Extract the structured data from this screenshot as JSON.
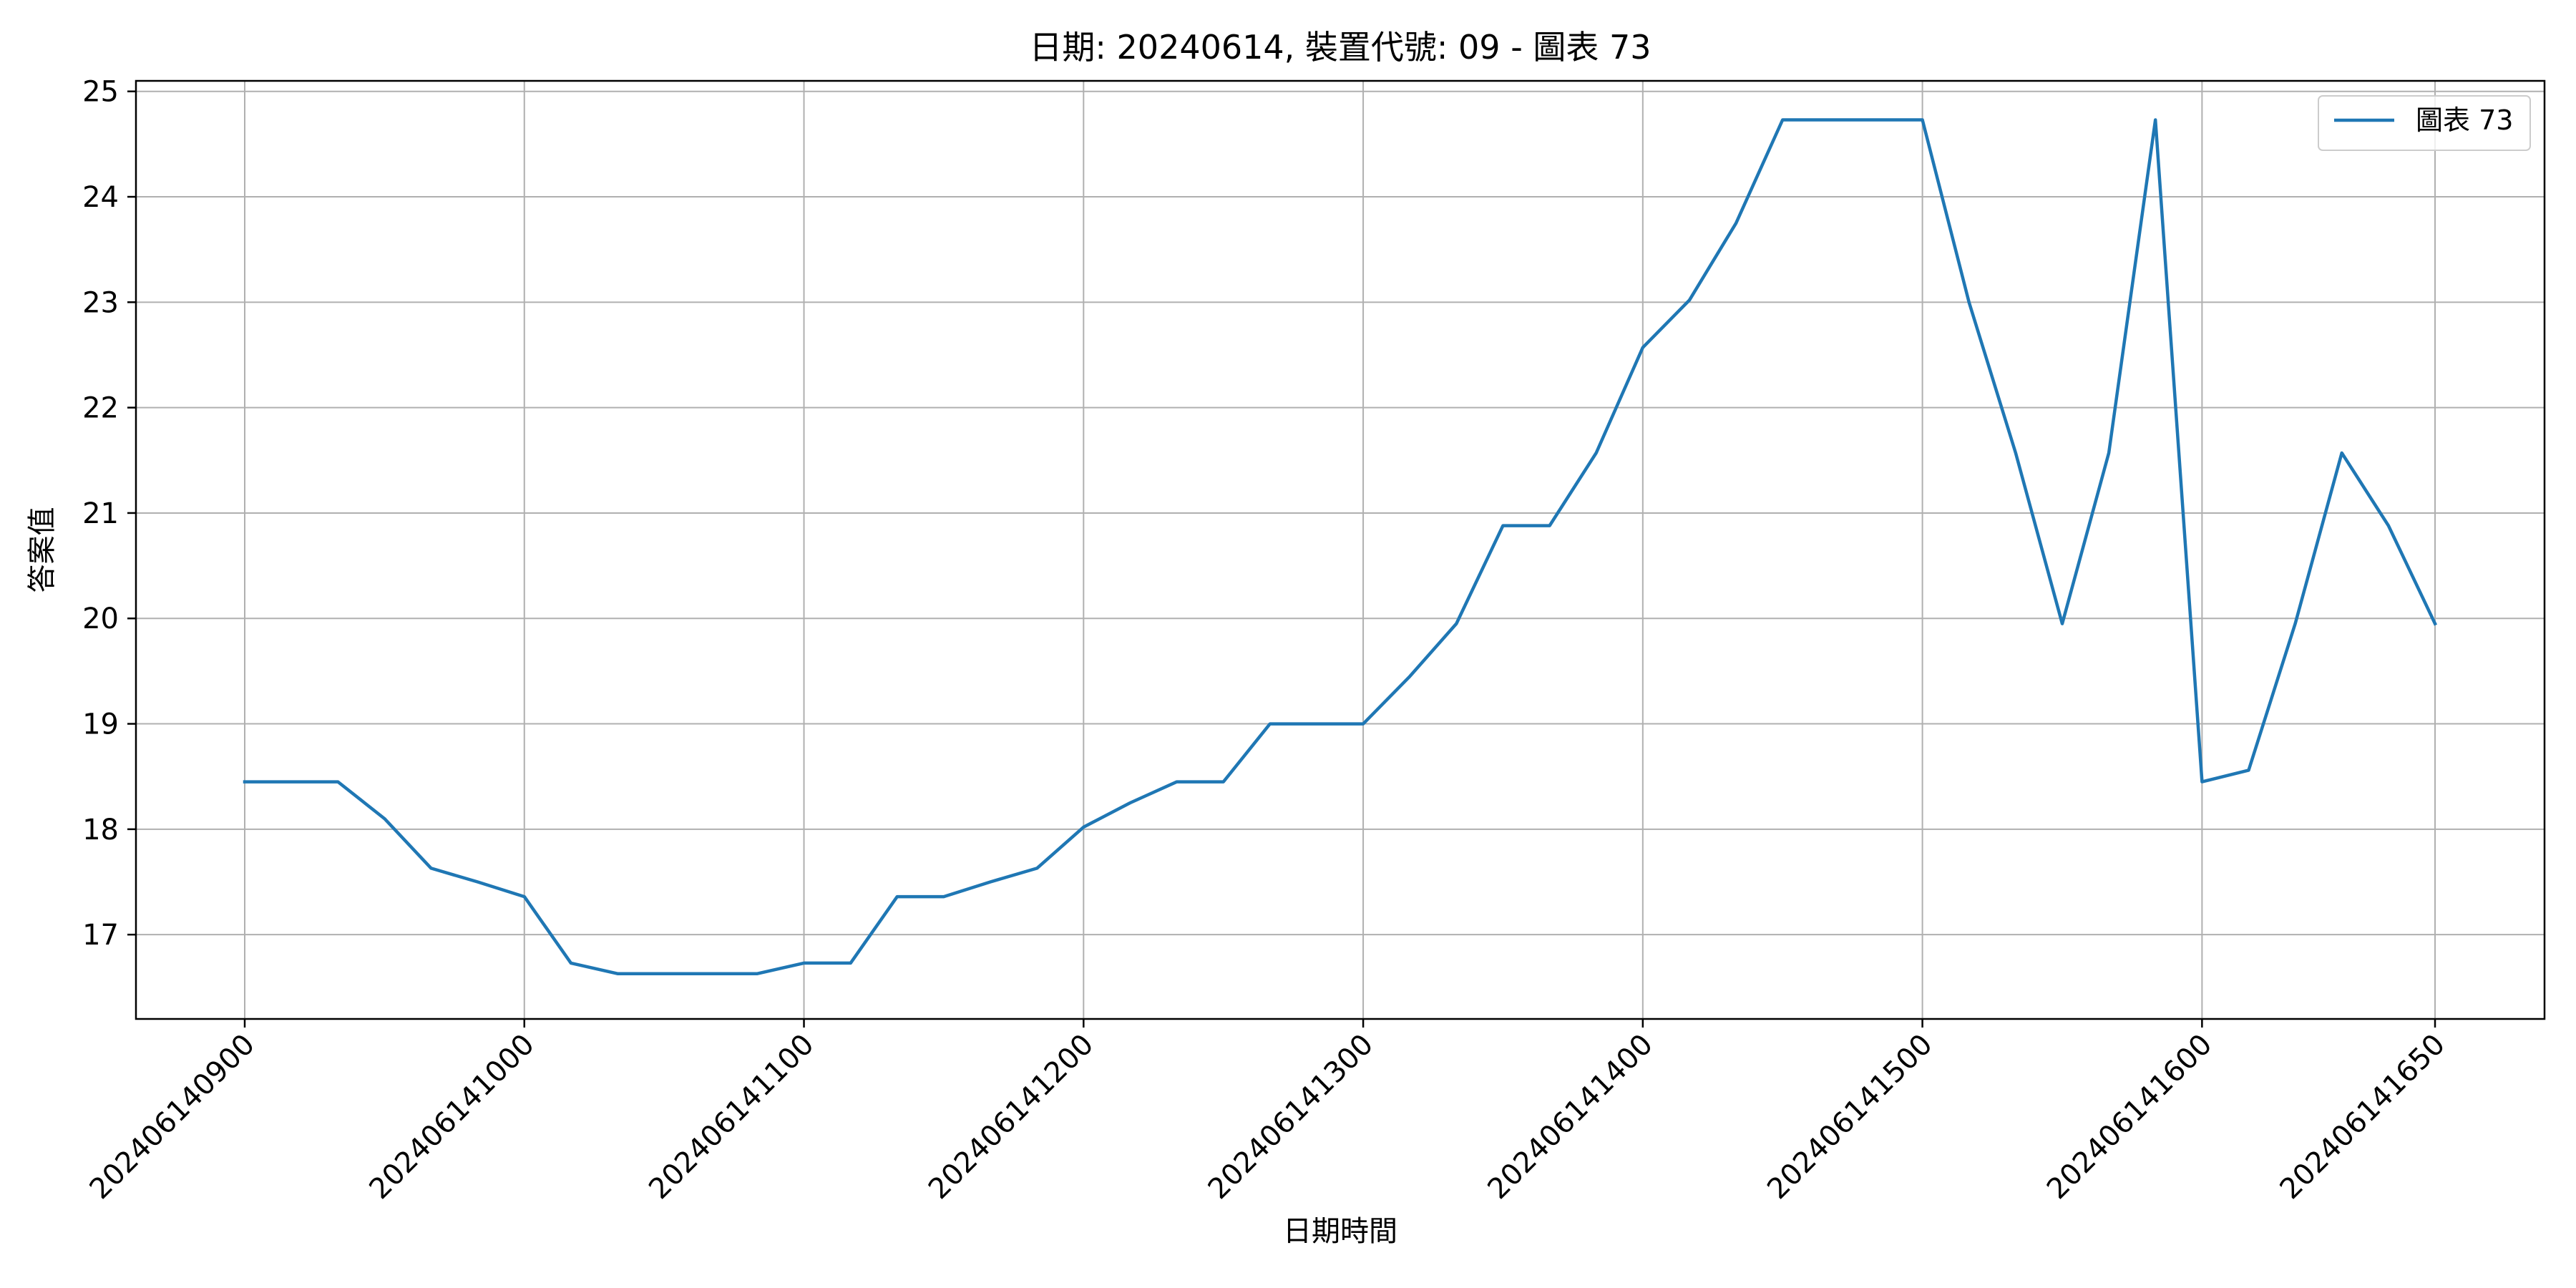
{
  "chart_data": {
    "type": "line",
    "title": "日期: 20240614, 裝置代號: 09 - 圖表 73",
    "xlabel": "日期時間",
    "ylabel": "答案值",
    "x_ticks": [
      "202406140900",
      "202406141000",
      "202406141100",
      "202406141200",
      "202406141300",
      "202406141400",
      "202406141500",
      "202406141600",
      "202406141650"
    ],
    "y_ticks": [
      17,
      18,
      19,
      20,
      21,
      22,
      23,
      24,
      25
    ],
    "ylim": [
      16.2,
      25.1
    ],
    "grid": true,
    "legend_position": "top-right",
    "series": [
      {
        "name": "圖表 73",
        "color": "#1f77b4",
        "x": [
          "202406140900",
          "202406140910",
          "202406140920",
          "202406140930",
          "202406140940",
          "202406140950",
          "202406141000",
          "202406141010",
          "202406141020",
          "202406141030",
          "202406141040",
          "202406141050",
          "202406141100",
          "202406141110",
          "202406141120",
          "202406141130",
          "202406141140",
          "202406141150",
          "202406141200",
          "202406141210",
          "202406141220",
          "202406141230",
          "202406141240",
          "202406141250",
          "202406141300",
          "202406141310",
          "202406141320",
          "202406141330",
          "202406141340",
          "202406141350",
          "202406141400",
          "202406141410",
          "202406141420",
          "202406141430",
          "202406141440",
          "202406141450",
          "202406141500",
          "202406141510",
          "202406141520",
          "202406141530",
          "202406141540",
          "202406141550",
          "202406141600",
          "202406141610",
          "202406141620",
          "202406141630",
          "202406141640",
          "202406141650"
        ],
        "values": [
          18.45,
          18.45,
          18.45,
          18.1,
          17.63,
          17.5,
          17.36,
          16.73,
          16.63,
          16.63,
          16.63,
          16.63,
          16.73,
          16.73,
          17.36,
          17.36,
          17.5,
          17.63,
          18.02,
          18.25,
          18.45,
          18.45,
          19.0,
          19.0,
          19.0,
          19.45,
          19.95,
          20.88,
          20.88,
          21.57,
          22.57,
          23.02,
          23.75,
          24.73,
          24.73,
          24.73,
          24.73,
          23.0,
          21.57,
          19.95,
          21.57,
          24.73,
          18.45,
          18.56,
          19.95,
          21.57,
          20.88,
          19.95
        ]
      }
    ]
  }
}
